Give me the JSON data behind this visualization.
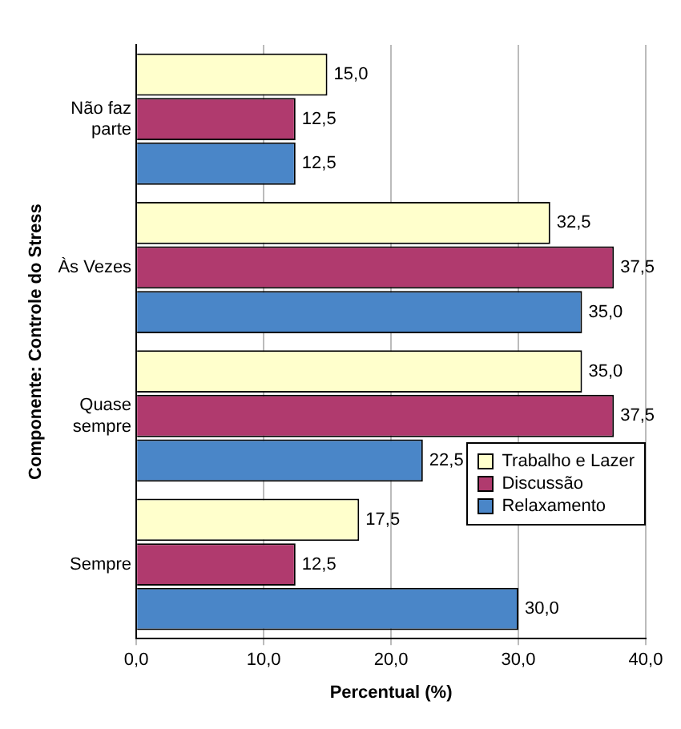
{
  "chart_data": {
    "type": "bar",
    "orientation": "horizontal",
    "xlabel": "Percentual (%)",
    "ylabel": "Componente: Controle do Stress",
    "categories": [
      "Não faz parte",
      "Às Vezes",
      "Quase sempre",
      "Sempre"
    ],
    "series": [
      {
        "name": "Trabalho e Lazer",
        "color": "#ffffcc",
        "values": [
          15.0,
          32.5,
          35.0,
          17.5
        ],
        "value_labels": [
          "15,0",
          "32,5",
          "35,0",
          "17,5"
        ]
      },
      {
        "name": "Discussão",
        "color": "#b03a6e",
        "values": [
          12.5,
          37.5,
          37.5,
          12.5
        ],
        "value_labels": [
          "12,5",
          "37,5",
          "37,5",
          "12,5"
        ]
      },
      {
        "name": "Relaxamento",
        "color": "#4a86c8",
        "values": [
          12.5,
          35.0,
          22.5,
          30.0
        ],
        "value_labels": [
          "12,5",
          "35,0",
          "22,5",
          "30,0"
        ]
      }
    ],
    "xlim": [
      0,
      40
    ],
    "xticks": [
      {
        "value": 0,
        "label": "0,0"
      },
      {
        "value": 10,
        "label": "10,0"
      },
      {
        "value": 20,
        "label": "20,0"
      },
      {
        "value": 30,
        "label": "30,0"
      },
      {
        "value": 40,
        "label": "40,0"
      }
    ],
    "grid": "x",
    "legend": "bottom right"
  }
}
